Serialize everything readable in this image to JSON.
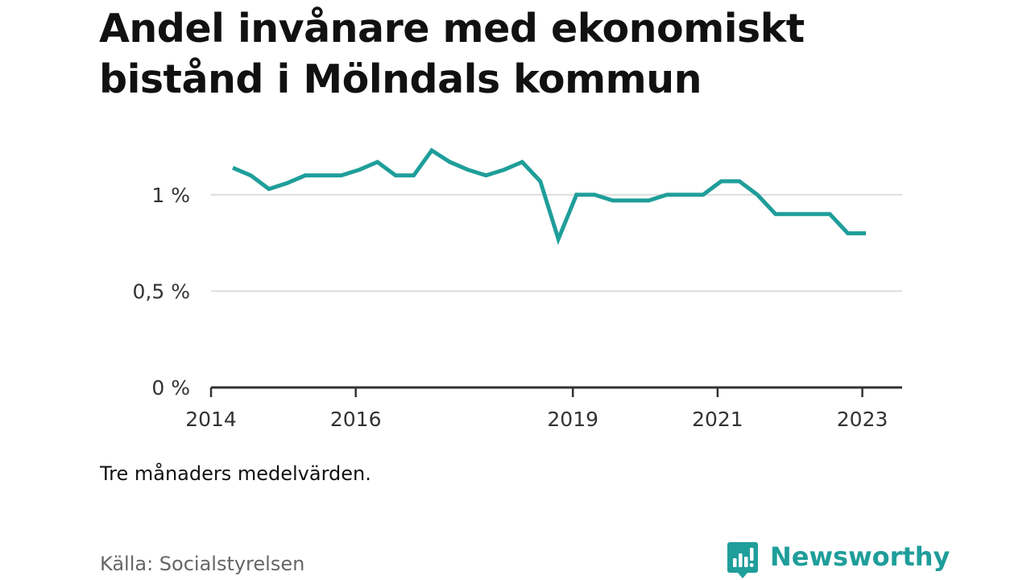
{
  "title": "Andel invånare med ekonomiskt bistånd i Mölndals kommun",
  "note": "Tre månaders medelvärden.",
  "source": "Källa: Socialstyrelsen",
  "brand": {
    "name": "Newsworthy",
    "icon": "newsworthy-logo-icon",
    "color": "#1f9e9a"
  },
  "chart_data": {
    "type": "line",
    "title": "Andel invånare med ekonomiskt bistånd i Mölndals kommun",
    "xlabel": "",
    "ylabel": "",
    "x_unit": "year",
    "xlim": [
      2014.0,
      2023.55
    ],
    "ylim": [
      0,
      1.3
    ],
    "x_ticks": [
      {
        "value": 2014,
        "label": "2014"
      },
      {
        "value": 2016,
        "label": "2016"
      },
      {
        "value": 2019,
        "label": "2019"
      },
      {
        "value": 2021,
        "label": "2021"
      },
      {
        "value": 2023,
        "label": "2023"
      }
    ],
    "y_ticks": [
      {
        "value": 0,
        "label": "0 %"
      },
      {
        "value": 0.5,
        "label": "0,5 %"
      },
      {
        "value": 1,
        "label": "1 %"
      }
    ],
    "grid": true,
    "line_color": "#1f9e9a",
    "series": [
      {
        "x": [
          2014.3,
          2014.55,
          2014.8,
          2015.05,
          2015.3,
          2015.55,
          2015.8,
          2016.05,
          2016.3,
          2016.55,
          2016.8,
          2017.05,
          2017.3,
          2017.55,
          2017.8,
          2018.05,
          2018.3,
          2018.55,
          2018.8,
          2019.05,
          2019.3,
          2019.55,
          2019.8,
          2020.05,
          2020.3,
          2020.55,
          2020.8,
          2021.05,
          2021.3,
          2021.55,
          2021.8,
          2022.05,
          2022.3,
          2022.55,
          2022.8,
          2023.05
        ],
        "values": [
          1.14,
          1.1,
          1.03,
          1.06,
          1.1,
          1.1,
          1.1,
          1.13,
          1.17,
          1.1,
          1.1,
          1.23,
          1.17,
          1.13,
          1.1,
          1.13,
          1.17,
          1.07,
          0.77,
          1.0,
          1.0,
          0.97,
          0.97,
          0.97,
          1.0,
          1.0,
          1.0,
          1.07,
          1.07,
          1.0,
          0.9,
          0.9,
          0.9,
          0.9,
          0.8,
          0.8
        ]
      }
    ]
  }
}
